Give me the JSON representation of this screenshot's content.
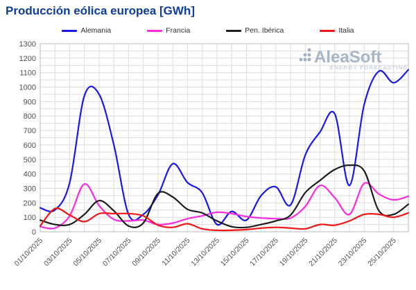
{
  "title": "Producción eólica europea [GWh]",
  "watermark": {
    "brand": "AleaSoft",
    "tagline": "ENERGY FORECASTING",
    "brand_color": "#a7b5c6",
    "tagline_color": "#b3c2d3",
    "icon_color": "#9fb0c2"
  },
  "axes": {
    "y_label_color": "#4f4f4f",
    "x_label_color": "#4f4f4f",
    "grid_color": "#dcdcdc",
    "border_color": "#b8b8b8"
  },
  "chart_data": {
    "type": "line",
    "title": "Producción eólica europea [GWh]",
    "xlabel": "",
    "ylabel": "",
    "ylim": [
      0,
      1300
    ],
    "y_tick_step": 100,
    "y_grid_step": 50,
    "x_tick_step": 2,
    "grid": true,
    "legend_position": "top",
    "x_labels": [
      "01/10/2025",
      "02/10/2025",
      "03/10/2025",
      "04/10/2025",
      "05/10/2025",
      "06/10/2025",
      "07/10/2025",
      "08/10/2025",
      "09/10/2025",
      "10/10/2025",
      "11/10/2025",
      "12/10/2025",
      "13/10/2025",
      "14/10/2025",
      "15/10/2025",
      "16/10/2025",
      "17/10/2025",
      "18/10/2025",
      "19/10/2025",
      "20/10/2025",
      "21/10/2025",
      "22/10/2025",
      "23/10/2025",
      "24/10/2025",
      "25/10/2025",
      "26/10/2025"
    ],
    "series": [
      {
        "name": "Alemania",
        "slug": "alemania",
        "color": "#1717ee",
        "values": [
          165,
          150,
          340,
          940,
          950,
          600,
          120,
          120,
          255,
          470,
          340,
          270,
          50,
          140,
          80,
          250,
          310,
          185,
          530,
          690,
          815,
          320,
          880,
          1110,
          1030,
          1120
        ]
      },
      {
        "name": "Francia",
        "slug": "francia",
        "color": "#fb2ae2",
        "values": [
          35,
          25,
          110,
          330,
          180,
          85,
          75,
          80,
          50,
          60,
          90,
          110,
          135,
          125,
          105,
          95,
          90,
          95,
          175,
          320,
          235,
          120,
          335,
          260,
          220,
          245
        ]
      },
      {
        "name": "Pen. Ibérica",
        "slug": "pen-iberica",
        "color": "#1c1c1c",
        "values": [
          80,
          50,
          50,
          120,
          215,
          145,
          40,
          60,
          265,
          240,
          155,
          130,
          75,
          35,
          30,
          50,
          75,
          115,
          270,
          355,
          430,
          460,
          420,
          145,
          120,
          190
        ]
      },
      {
        "name": "Italia",
        "slug": "italia",
        "color": "#f21616",
        "values": [
          40,
          160,
          115,
          70,
          125,
          125,
          125,
          110,
          45,
          30,
          55,
          20,
          10,
          10,
          15,
          25,
          30,
          25,
          20,
          50,
          45,
          75,
          120,
          120,
          100,
          130
        ]
      }
    ]
  }
}
